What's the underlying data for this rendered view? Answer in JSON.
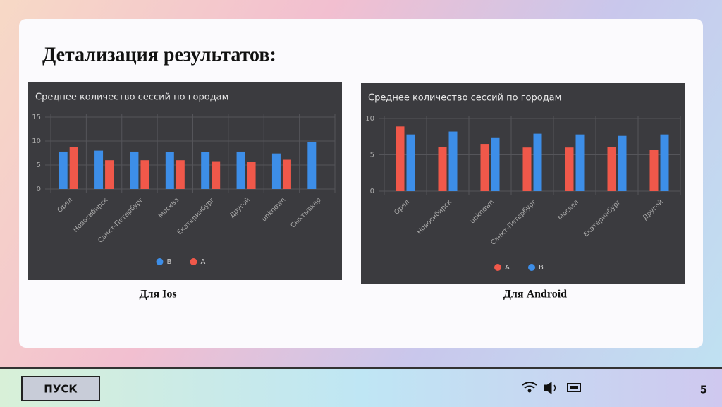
{
  "page": {
    "title": "Детализация результатов:",
    "start_button": "ПУСК",
    "slide_number": "5"
  },
  "chart_data": [
    {
      "type": "bar",
      "title": "Среднее количество сессий по городам",
      "caption": "Для Ios",
      "categories": [
        "Орел",
        "Новосибирск",
        "Санкт-Петербург",
        "Москва",
        "Екатеринбург",
        "Другой",
        "unknown",
        "Сыктывкар"
      ],
      "series": [
        {
          "name": "B",
          "color": "#3d8ee8",
          "values": [
            7.8,
            8,
            7.8,
            7.7,
            7.7,
            7.8,
            7.4,
            9.8
          ]
        },
        {
          "name": "A",
          "color": "#f0584a",
          "values": [
            8.8,
            6,
            6,
            6,
            5.8,
            5.7,
            6.1,
            null
          ]
        }
      ],
      "ylim": [
        0,
        15
      ],
      "yticks": [
        0,
        5,
        10,
        15
      ],
      "grid": true
    },
    {
      "type": "bar",
      "title": "Среднее количество сессий по городам",
      "caption": "Для Android",
      "categories": [
        "Орел",
        "Новосибирск",
        "unknown",
        "Санкт-Петербург",
        "Москва",
        "Екатеринбург",
        "Другой"
      ],
      "series": [
        {
          "name": "A",
          "color": "#f0584a",
          "values": [
            8.9,
            6.1,
            6.5,
            6,
            6,
            6.1,
            5.7
          ]
        },
        {
          "name": "B",
          "color": "#3d8ee8",
          "values": [
            7.8,
            8.2,
            7.4,
            7.9,
            7.8,
            7.6,
            7.8
          ]
        }
      ],
      "ylim": [
        0,
        10
      ],
      "yticks": [
        0,
        5,
        10
      ],
      "grid": true
    }
  ]
}
